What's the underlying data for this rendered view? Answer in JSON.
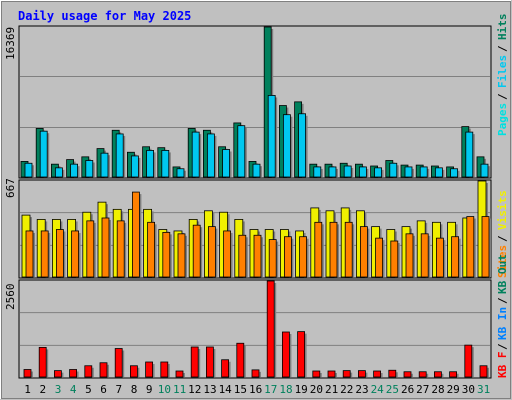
{
  "title": "Daily usage for May 2025",
  "colors": {
    "background": "#c0c0c0",
    "panel": "#c0c0c0",
    "title": "#0000ff",
    "hits": "#00805c",
    "files": "#00c8f0",
    "pages": "#00e0e0",
    "visits": "#f0f000",
    "sites": "#ff8000",
    "kbytes": "#ff0000",
    "weekend_day": "#00805c",
    "weekday": "#000000"
  },
  "chart_data": [
    {
      "type": "bar",
      "panel": "hits-files-pages",
      "y_max_label": "16369",
      "legend": [
        "Pages",
        "Files",
        "Hits"
      ],
      "categories": [
        "1",
        "2",
        "3",
        "4",
        "5",
        "6",
        "7",
        "8",
        "9",
        "10",
        "11",
        "12",
        "13",
        "14",
        "15",
        "16",
        "17",
        "18",
        "19",
        "20",
        "21",
        "22",
        "23",
        "24",
        "25",
        "26",
        "27",
        "28",
        "29",
        "30",
        "31"
      ],
      "ylim": [
        0,
        16369
      ],
      "series": [
        {
          "name": "Hits",
          "values": [
            1700,
            5300,
            1400,
            1900,
            2200,
            3100,
            5100,
            2700,
            3300,
            3200,
            1100,
            5300,
            5100,
            3300,
            5900,
            1700,
            16369,
            7800,
            8200,
            1400,
            1400,
            1500,
            1400,
            1200,
            1800,
            1300,
            1300,
            1200,
            1100,
            5500,
            2200
          ]
        },
        {
          "name": "Files",
          "values": [
            1500,
            5000,
            1000,
            1400,
            1800,
            2600,
            4700,
            2300,
            2900,
            2900,
            900,
            4900,
            4700,
            3000,
            5600,
            1400,
            8900,
            6800,
            6900,
            1100,
            1100,
            1200,
            1100,
            1000,
            1500,
            1100,
            1100,
            1000,
            900,
            4900,
            1400
          ]
        }
      ]
    },
    {
      "type": "bar",
      "panel": "visits-sites",
      "y_max_label": "667",
      "legend": [
        "Sites",
        "Visits"
      ],
      "categories": [
        "1",
        "2",
        "3",
        "4",
        "5",
        "6",
        "7",
        "8",
        "9",
        "10",
        "11",
        "12",
        "13",
        "14",
        "15",
        "16",
        "17",
        "18",
        "19",
        "20",
        "21",
        "22",
        "23",
        "24",
        "25",
        "26",
        "27",
        "28",
        "29",
        "30",
        "31"
      ],
      "ylim": [
        0,
        667
      ],
      "series": [
        {
          "name": "Visits",
          "values": [
            430,
            400,
            400,
            400,
            450,
            520,
            470,
            470,
            470,
            330,
            320,
            400,
            460,
            450,
            400,
            330,
            330,
            330,
            320,
            480,
            460,
            480,
            460,
            350,
            330,
            350,
            390,
            380,
            380,
            410,
            667
          ]
        },
        {
          "name": "Sites",
          "values": [
            320,
            320,
            330,
            320,
            390,
            410,
            390,
            590,
            380,
            310,
            300,
            360,
            350,
            320,
            290,
            290,
            260,
            280,
            280,
            380,
            380,
            380,
            350,
            270,
            250,
            300,
            300,
            270,
            280,
            420,
            420
          ]
        }
      ]
    },
    {
      "type": "bar",
      "panel": "kbytes",
      "y_max_label": "2560",
      "legend": [
        "KB F",
        "KB In",
        "KB Out"
      ],
      "categories": [
        "1",
        "2",
        "3",
        "4",
        "5",
        "6",
        "7",
        "8",
        "9",
        "10",
        "11",
        "12",
        "13",
        "14",
        "15",
        "16",
        "17",
        "18",
        "19",
        "20",
        "21",
        "22",
        "23",
        "24",
        "25",
        "26",
        "27",
        "28",
        "29",
        "30",
        "31"
      ],
      "ylim": [
        0,
        2560
      ],
      "series": [
        {
          "name": "KB F",
          "values": [
            200,
            790,
            170,
            200,
            300,
            380,
            760,
            300,
            400,
            400,
            160,
            800,
            800,
            460,
            900,
            190,
            2560,
            1200,
            1210,
            160,
            160,
            170,
            170,
            160,
            180,
            140,
            140,
            140,
            140,
            850,
            300
          ]
        }
      ]
    }
  ],
  "x_axis": {
    "labels": [
      "1",
      "2",
      "3",
      "4",
      "5",
      "6",
      "7",
      "8",
      "9",
      "10",
      "11",
      "12",
      "13",
      "14",
      "15",
      "16",
      "17",
      "18",
      "19",
      "20",
      "21",
      "22",
      "23",
      "24",
      "25",
      "26",
      "27",
      "28",
      "29",
      "30",
      "31"
    ],
    "weekend": [
      3,
      4,
      10,
      11,
      17,
      18,
      24,
      25,
      31
    ]
  }
}
